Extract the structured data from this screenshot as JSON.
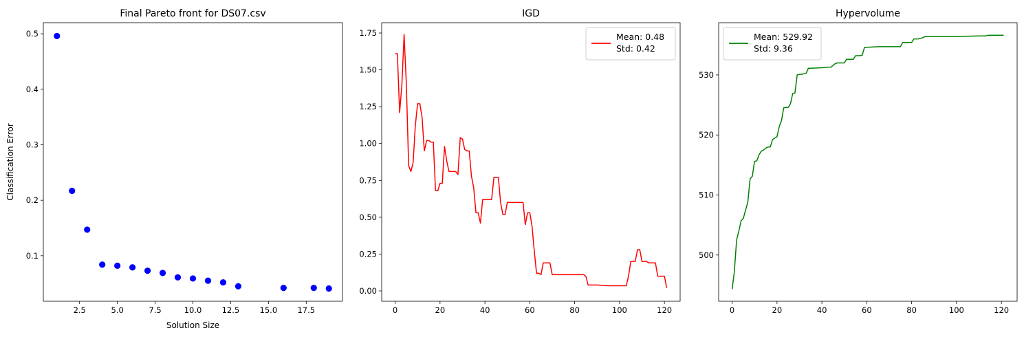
{
  "figure": {
    "charts": [
      {
        "title": "Final Pareto front for DS07.csv",
        "xlabel": "Solution Size",
        "ylabel": "Classification Error"
      },
      {
        "title": "IGD",
        "legend": [
          "Mean: 0.48",
          "Std: 0.42"
        ]
      },
      {
        "title": "Hypervolume",
        "legend": [
          "Mean: 529.92",
          "Std: 9.36"
        ]
      }
    ]
  },
  "chart_data": [
    {
      "type": "scatter",
      "title": "Final Pareto front for DS07.csv",
      "xlabel": "Solution Size",
      "ylabel": "Classification Error",
      "xlim": [
        0.1,
        19.9
      ],
      "ylim": [
        0.018,
        0.52
      ],
      "xticks": [
        2.5,
        5.0,
        7.5,
        10.0,
        12.5,
        15.0,
        17.5
      ],
      "xtick_labels": [
        "2.5",
        "5.0",
        "7.5",
        "10.0",
        "12.5",
        "15.0",
        "17.5"
      ],
      "yticks": [
        0.1,
        0.2,
        0.3,
        0.4,
        0.5
      ],
      "ytick_labels": [
        "0.1",
        "0.2",
        "0.3",
        "0.4",
        "0.5"
      ],
      "color": "#0000ff",
      "x": [
        1,
        2,
        3,
        4,
        5,
        6,
        7,
        8,
        9,
        10,
        11,
        12,
        13,
        16,
        18,
        19
      ],
      "y": [
        0.496,
        0.217,
        0.147,
        0.084,
        0.082,
        0.079,
        0.073,
        0.069,
        0.061,
        0.059,
        0.055,
        0.052,
        0.045,
        0.042,
        0.042,
        0.041
      ]
    },
    {
      "type": "line",
      "title": "IGD",
      "xlabel": "",
      "ylabel": "",
      "xlim": [
        -6,
        127
      ],
      "ylim": [
        -0.07,
        1.82
      ],
      "xticks": [
        0,
        20,
        40,
        60,
        80,
        100,
        120
      ],
      "xtick_labels": [
        "0",
        "20",
        "40",
        "60",
        "80",
        "100",
        "120"
      ],
      "yticks": [
        0.0,
        0.25,
        0.5,
        0.75,
        1.0,
        1.25,
        1.5,
        1.75
      ],
      "ytick_labels": [
        "0.00",
        "0.25",
        "0.50",
        "0.75",
        "1.00",
        "1.25",
        "1.50",
        "1.75"
      ],
      "legend_position": "upper right",
      "series": [
        {
          "color": "#ff0000",
          "x": [
            0,
            1,
            2,
            3,
            4,
            5,
            6,
            7,
            8,
            9,
            10,
            11,
            12,
            13,
            14,
            15,
            16,
            17,
            18,
            19,
            20,
            21,
            22,
            23,
            24,
            25,
            26,
            27,
            28,
            29,
            30,
            31,
            32,
            33,
            34,
            35,
            36,
            37,
            38,
            39,
            40,
            41,
            42,
            43,
            44,
            45,
            46,
            47,
            48,
            49,
            50,
            51,
            52,
            53,
            54,
            55,
            56,
            57,
            58,
            59,
            60,
            61,
            62,
            63,
            64,
            65,
            66,
            67,
            68,
            69,
            70,
            75,
            80,
            83,
            84,
            85,
            86,
            90,
            95,
            100,
            103,
            104,
            105,
            106,
            107,
            108,
            109,
            110,
            111,
            112,
            113,
            114,
            115,
            116,
            117,
            118,
            119,
            120,
            121
          ],
          "y": [
            1.61,
            1.61,
            1.21,
            1.4,
            1.74,
            1.4,
            0.85,
            0.81,
            0.87,
            1.12,
            1.27,
            1.27,
            1.18,
            0.95,
            1.02,
            1.02,
            1.01,
            1.01,
            0.68,
            0.68,
            0.73,
            0.73,
            0.98,
            0.88,
            0.81,
            0.81,
            0.81,
            0.81,
            0.79,
            1.04,
            1.03,
            0.96,
            0.95,
            0.95,
            0.78,
            0.7,
            0.53,
            0.53,
            0.46,
            0.62,
            0.62,
            0.62,
            0.62,
            0.62,
            0.77,
            0.77,
            0.77,
            0.6,
            0.52,
            0.52,
            0.6,
            0.6,
            0.6,
            0.6,
            0.6,
            0.6,
            0.6,
            0.6,
            0.45,
            0.53,
            0.53,
            0.44,
            0.27,
            0.12,
            0.12,
            0.11,
            0.19,
            0.19,
            0.19,
            0.19,
            0.11,
            0.11,
            0.11,
            0.11,
            0.11,
            0.1,
            0.04,
            0.04,
            0.035,
            0.035,
            0.035,
            0.1,
            0.2,
            0.2,
            0.2,
            0.28,
            0.28,
            0.2,
            0.2,
            0.2,
            0.19,
            0.19,
            0.19,
            0.19,
            0.1,
            0.1,
            0.1,
            0.1,
            0.02
          ]
        }
      ]
    },
    {
      "type": "line",
      "title": "Hypervolume",
      "xlabel": "",
      "ylabel": "",
      "xlim": [
        -6,
        127
      ],
      "ylim": [
        492.3,
        538.7
      ],
      "xticks": [
        0,
        20,
        40,
        60,
        80,
        100,
        120
      ],
      "xtick_labels": [
        "0",
        "20",
        "40",
        "60",
        "80",
        "100",
        "120"
      ],
      "yticks": [
        500,
        510,
        520,
        530
      ],
      "ytick_labels": [
        "500",
        "510",
        "520",
        "530"
      ],
      "legend_position": "upper left",
      "series": [
        {
          "color": "#008000",
          "x": [
            0,
            1,
            2,
            3,
            4,
            5,
            6,
            7,
            8,
            9,
            10,
            11,
            12,
            13,
            14,
            15,
            16,
            17,
            18,
            19,
            20,
            21,
            22,
            23,
            24,
            25,
            26,
            27,
            28,
            29,
            30,
            31,
            32,
            33,
            34,
            35,
            40,
            43,
            44,
            46,
            47,
            50,
            51,
            54,
            55,
            57,
            58,
            59,
            60,
            65,
            70,
            75,
            76,
            78,
            80,
            81,
            83,
            84,
            85,
            86,
            90,
            100,
            110,
            113,
            114,
            121
          ],
          "y": [
            494.3,
            497.2,
            502.5,
            504.0,
            505.7,
            506.1,
            507.5,
            508.8,
            512.7,
            513.1,
            515.6,
            515.7,
            516.7,
            517.3,
            517.5,
            517.8,
            518.0,
            518.0,
            519.2,
            519.5,
            519.7,
            521.4,
            522.4,
            524.5,
            524.6,
            524.6,
            525.2,
            526.9,
            527.0,
            530.0,
            530.1,
            530.1,
            530.2,
            530.3,
            531.1,
            531.1,
            531.2,
            531.3,
            531.3,
            531.9,
            532.0,
            532.0,
            532.6,
            532.6,
            533.2,
            533.2,
            533.3,
            534.6,
            534.6,
            534.7,
            534.7,
            534.7,
            535.4,
            535.4,
            535.4,
            536.0,
            536.0,
            536.1,
            536.2,
            536.4,
            536.4,
            536.4,
            536.5,
            536.5,
            536.6,
            536.6
          ]
        }
      ]
    }
  ]
}
